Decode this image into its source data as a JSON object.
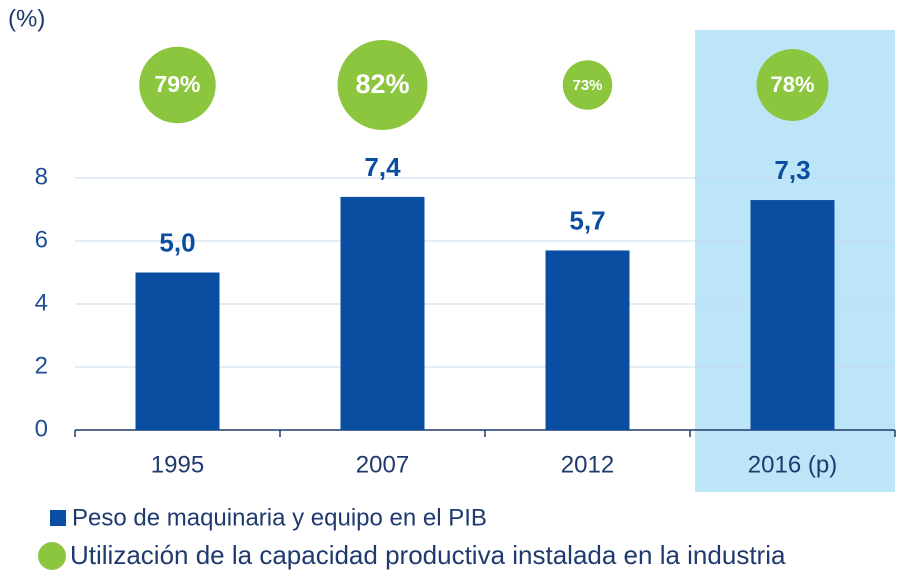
{
  "chart_data": {
    "type": "bar",
    "unit_label": "(%)",
    "categories": [
      "1995",
      "2007",
      "2012",
      "2016 (p)"
    ],
    "series": [
      {
        "name": "Peso de maquinaria y equipo en el PIB",
        "color": "#0a4ea2",
        "values": [
          5.0,
          7.4,
          5.7,
          7.3
        ],
        "value_labels": [
          "5,0",
          "7,4",
          "5,7",
          "7,3"
        ]
      },
      {
        "name": "Utilización de la capacidad productiva instalada en la industria",
        "type": "bubble",
        "color": "#8cc63f",
        "values": [
          79,
          82,
          73,
          78
        ],
        "value_labels": [
          "79%",
          "82%",
          "73%",
          "78%"
        ]
      }
    ],
    "ylim": [
      0,
      8
    ],
    "yticks": [
      0,
      2,
      4,
      6,
      8
    ],
    "grid": true,
    "highlight_index": 3,
    "highlight_color": "#bde5f8"
  }
}
